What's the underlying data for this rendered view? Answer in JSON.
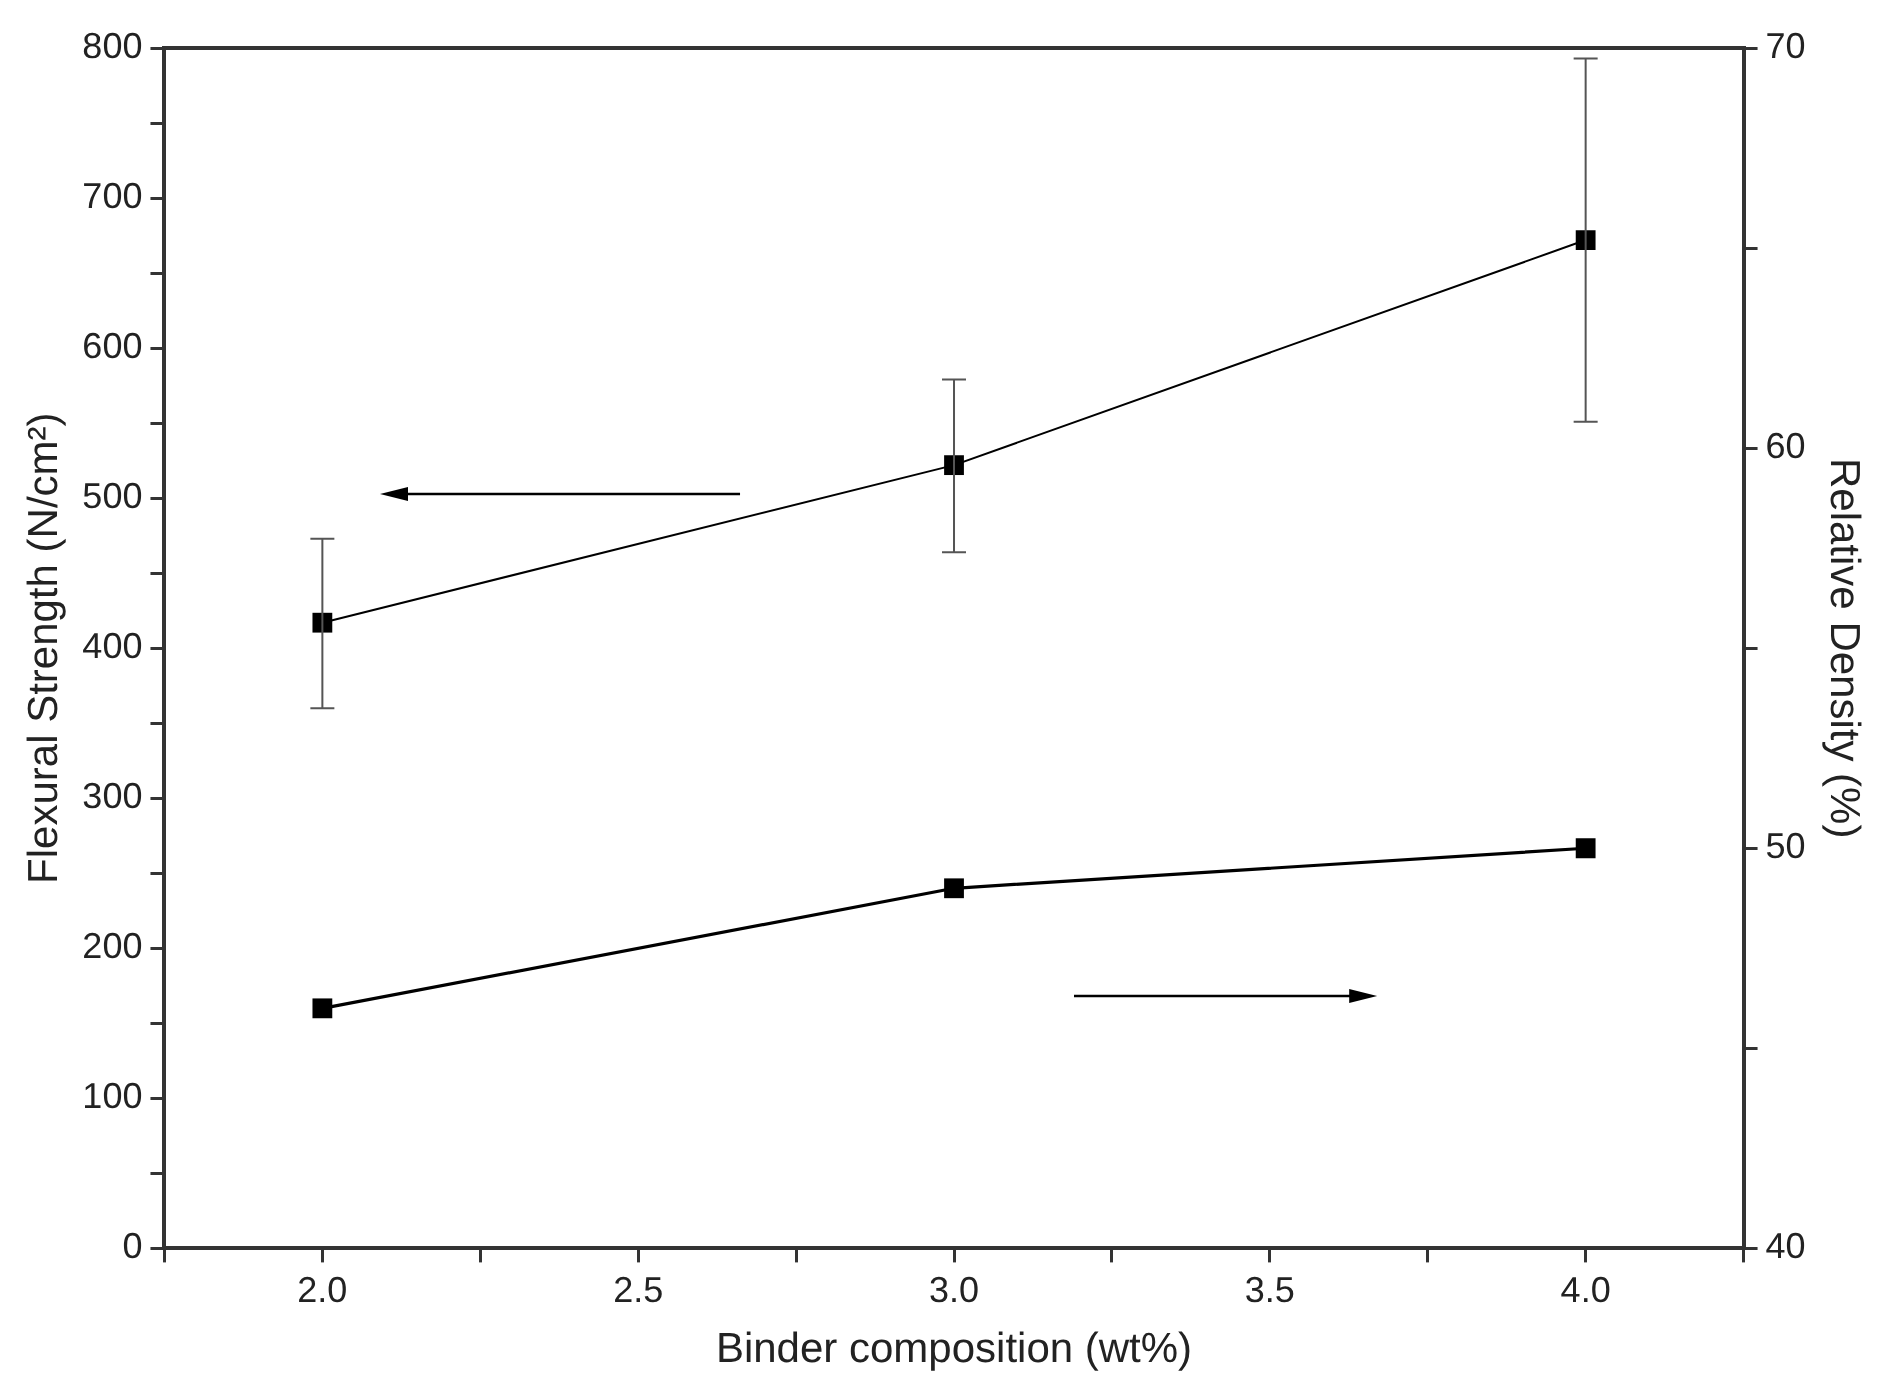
{
  "chart_data": {
    "type": "line",
    "xlabel": "Binder composition (wt%)",
    "ylabel": "Flexural Strength (N/cm²)",
    "y2label": "Relative Density (%)",
    "x": [
      2.0,
      3.0,
      4.0
    ],
    "series": [
      {
        "color": "#000000",
        "values": [
          417,
          522,
          672
        ],
        "errors": [
          [
            360,
            473
          ],
          [
            464,
            579
          ],
          [
            551,
            793
          ]
        ]
      },
      {
        "color": "#000000",
        "values": [
          46.0,
          49.0,
          50.0
        ],
        "axis": "y2"
      }
    ],
    "xlim": [
      1.75,
      4.25
    ],
    "xticks": [
      {
        "value": 1.75,
        "label": null
      },
      {
        "value": 2.0,
        "label": "2.0"
      },
      {
        "value": 2.25,
        "label": null
      },
      {
        "value": 2.5,
        "label": "2.5"
      },
      {
        "value": 2.75,
        "label": null
      },
      {
        "value": 3.0,
        "label": "3.0"
      },
      {
        "value": 3.25,
        "label": null
      },
      {
        "value": 3.5,
        "label": "3.5"
      },
      {
        "value": 3.75,
        "label": null
      },
      {
        "value": 4.0,
        "label": "4.0"
      },
      {
        "value": 4.25,
        "label": null
      }
    ],
    "ylim": [
      0,
      800
    ],
    "yticks": [
      0,
      {
        "value": 50,
        "label": null
      },
      100,
      {
        "value": 150,
        "label": null
      },
      200,
      {
        "value": 250,
        "label": null
      },
      300,
      {
        "value": 350,
        "label": null
      },
      400,
      {
        "value": 450,
        "label": null
      },
      500,
      {
        "value": 550,
        "label": null
      },
      600,
      {
        "value": 650,
        "label": null
      },
      700,
      {
        "value": 750,
        "label": null
      },
      800
    ],
    "y2lim": [
      40,
      70
    ],
    "y2ticks": [
      40,
      {
        "value": 45,
        "label": null
      },
      50,
      {
        "value": 55,
        "label": null
      },
      60,
      {
        "value": 65,
        "label": null
      },
      70
    ],
    "grid": false,
    "legend": false,
    "marker": "square",
    "line_style": "solid"
  }
}
